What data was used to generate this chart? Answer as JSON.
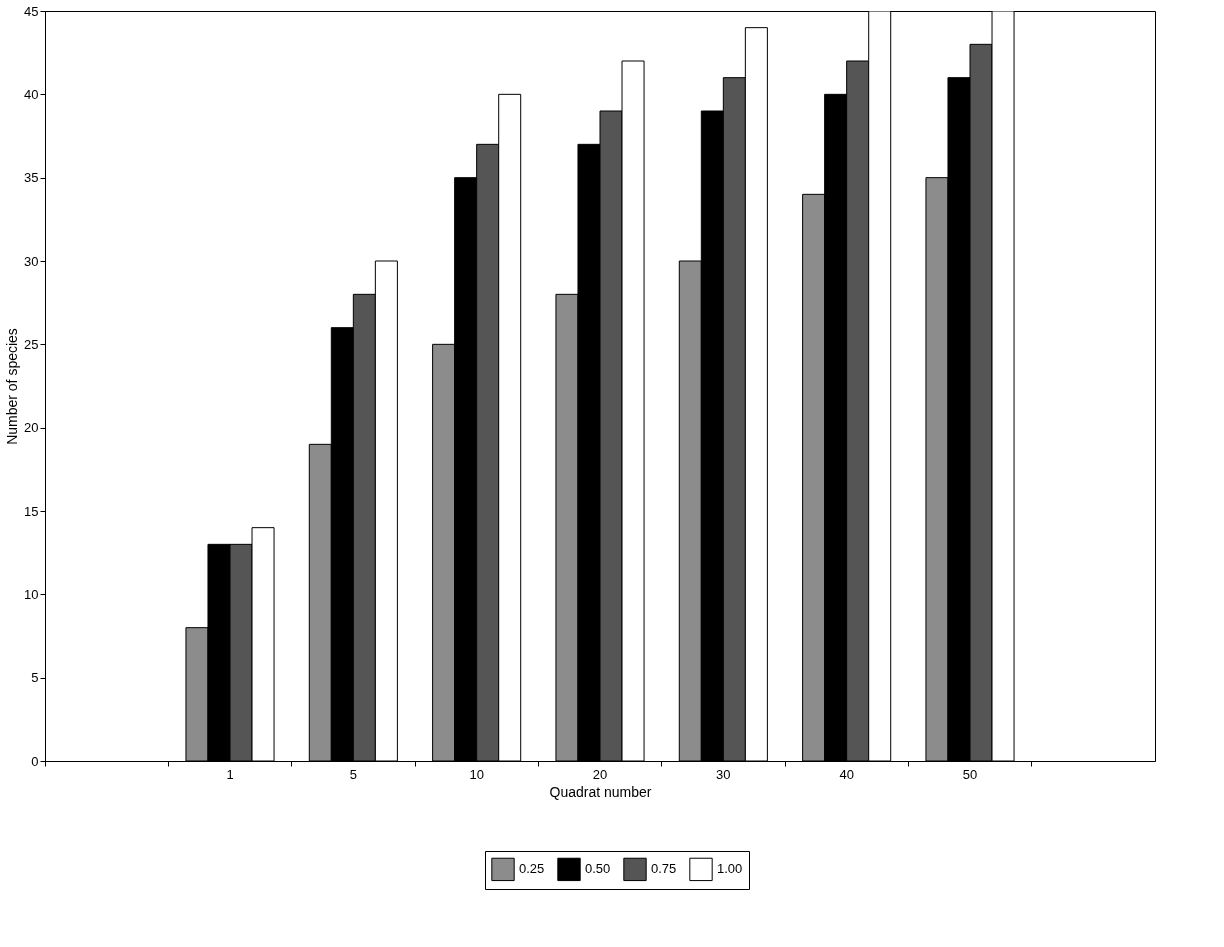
{
  "chart_data": {
    "type": "bar",
    "xlabel": "Quadrat number",
    "ylabel": "Number of species",
    "categories": [
      null,
      "1",
      "5",
      "10",
      "20",
      "30",
      "40",
      "50",
      null
    ],
    "series": [
      {
        "name": "0.25",
        "color": "#8c8c8c",
        "values": [
          null,
          8,
          19,
          25,
          28,
          30,
          34,
          35,
          null
        ]
      },
      {
        "name": "0.50",
        "color": "#000000",
        "values": [
          null,
          13,
          26,
          35,
          37,
          39,
          40,
          41,
          null
        ]
      },
      {
        "name": "0.75",
        "color": "#555555",
        "values": [
          null,
          13,
          28,
          37,
          39,
          41,
          42,
          43,
          null
        ]
      },
      {
        "name": "1.00",
        "color": "#ffffff",
        "values": [
          null,
          14,
          30,
          40,
          42,
          44,
          45,
          45,
          null
        ]
      }
    ],
    "ylim": [
      0,
      45
    ],
    "yticks": [
      0,
      5,
      10,
      15,
      20,
      25,
      30,
      35,
      40,
      45
    ],
    "grid": false,
    "legend": "bottom"
  }
}
